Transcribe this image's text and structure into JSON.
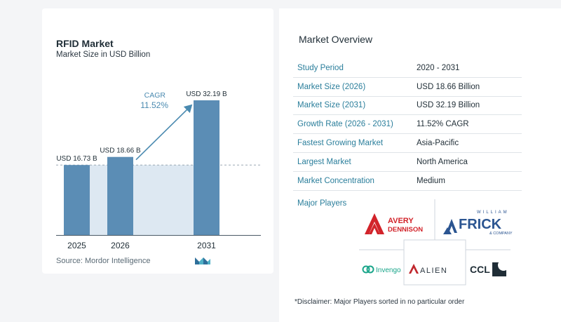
{
  "chart": {
    "title": "RFID Market",
    "subtitle": "Market Size in USD Billion",
    "cagr_label": "CAGR",
    "cagr_value": "11.52%",
    "source_label": "Source:",
    "source_name": "Mordor Intelligence",
    "colors": {
      "bar": "#5b8db5",
      "shade": "#dde8f2",
      "arrow": "#4a8ab0",
      "cagr_text": "#4a8ab0"
    }
  },
  "chart_data": {
    "type": "bar",
    "categories": [
      "2025",
      "2026",
      "2031"
    ],
    "values": [
      16.73,
      18.66,
      32.19
    ],
    "data_labels": [
      "USD 16.73 B",
      "USD 18.66 B",
      "USD 32.19 B"
    ],
    "title": "RFID Market",
    "subtitle": "Market Size in USD Billion",
    "ylim": [
      0,
      35
    ],
    "grid": false
  },
  "overview": {
    "title": "Market Overview",
    "rows": [
      {
        "key": "Study Period",
        "value": "2020 - 2031"
      },
      {
        "key": "Market Size (2026)",
        "value": "USD 18.66 Billion"
      },
      {
        "key": "Market Size (2031)",
        "value": "USD 32.19 Billion"
      },
      {
        "key": "Growth Rate (2026 - 2031)",
        "value": "11.52% CAGR"
      },
      {
        "key": "Fastest Growing Market",
        "value": "Asia-Pacific"
      },
      {
        "key": "Largest Market",
        "value": "North America"
      },
      {
        "key": "Market Concentration",
        "value": "Medium"
      }
    ],
    "major_players_title": "Major Players",
    "players": {
      "avery_l1": "AVERY",
      "avery_l2": "DENNISON",
      "frick_top": "WILLIAM",
      "frick_main": "FRICK",
      "frick_sub": "& COMPANY",
      "invengo": "Invengo",
      "alien": "ALIEN",
      "ccl": "CCL"
    },
    "disclaimer": "*Disclaimer: Major Players sorted in no particular order"
  }
}
